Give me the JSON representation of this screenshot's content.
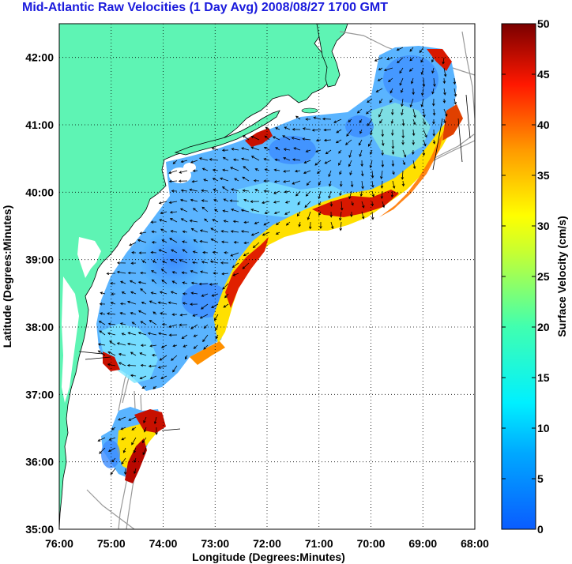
{
  "title": "Mid-Atlantic Raw Velocities (1 Day Avg) 2008/08/27 1700 GMT",
  "xlabel": "Longitude (Degrees:Minutes)",
  "ylabel": "Latitude (Degrees:Minutes)",
  "colorbar_label": "Surface Velocity (cm/s)",
  "x_ticks": [
    "76:00",
    "75:00",
    "74:00",
    "73:00",
    "72:00",
    "71:00",
    "70:00",
    "69:00",
    "68:00"
  ],
  "y_ticks": [
    "42:00",
    "41:00",
    "40:00",
    "39:00",
    "38:00",
    "37:00",
    "36:00",
    "35:00"
  ],
  "colorbar_ticks": [
    "50",
    "45",
    "40",
    "35",
    "30",
    "25",
    "20",
    "15",
    "10",
    "5",
    "0"
  ],
  "colors": {
    "land": "#5ef4b4",
    "title": "#1a1adc",
    "colormap": [
      "#0a6cff",
      "#00c8ff",
      "#40ffbf",
      "#ffff00",
      "#ff8000",
      "#ff0000",
      "#800000"
    ]
  },
  "chart_data": {
    "type": "heatmap",
    "xlim": [
      -76,
      -68
    ],
    "ylim": [
      35,
      42.5
    ],
    "clim": [
      0,
      50
    ],
    "grid": true
  }
}
